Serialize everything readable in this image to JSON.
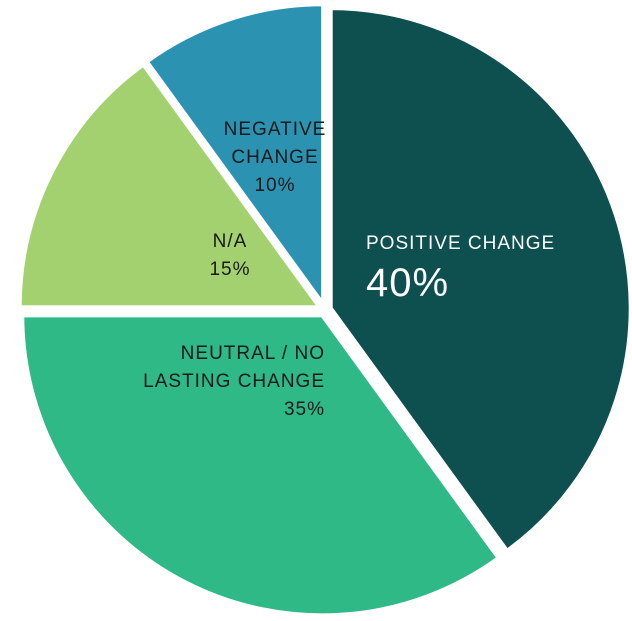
{
  "chart_data": {
    "type": "pie",
    "categories": [
      "POSITIVE CHANGE",
      "NEUTRAL / NO LASTING CHANGE",
      "N/A",
      "NEGATIVE CHANGE"
    ],
    "values": [
      40,
      35,
      15,
      10
    ],
    "value_labels": [
      "40%",
      "35%",
      "15%",
      "10%"
    ],
    "colors": [
      "#0e4f50",
      "#2fb986",
      "#a4d16f",
      "#2b93b1"
    ]
  }
}
